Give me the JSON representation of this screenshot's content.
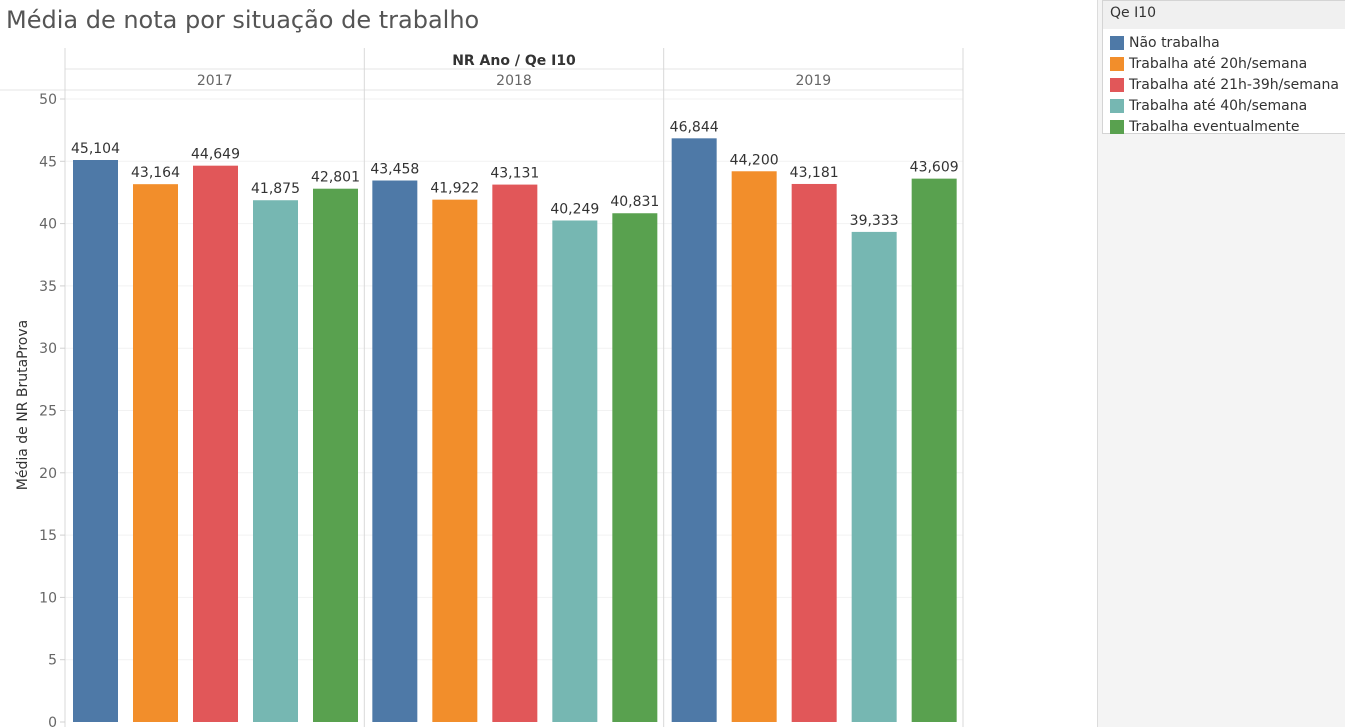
{
  "title": "Média de nota por situação de trabalho",
  "legend": {
    "title": "Qe I10",
    "items": [
      {
        "label": "Não trabalha",
        "color": "#4e79a7"
      },
      {
        "label": "Trabalha até 20h/semana",
        "color": "#f28e2b"
      },
      {
        "label": "Trabalha até 21h-39h/semana",
        "color": "#e15759"
      },
      {
        "label": "Trabalha até 40h/semana",
        "color": "#76b7b2"
      },
      {
        "label": "Trabalha eventualmente",
        "color": "#59a14f"
      }
    ]
  },
  "chart_data": {
    "type": "bar",
    "header": "NR Ano  /  Qe I10",
    "ylabel": "Média de NR BrutaProva",
    "ylim": [
      0,
      50
    ],
    "yticks": [
      0,
      5,
      10,
      15,
      20,
      25,
      30,
      35,
      40,
      45,
      50
    ],
    "categories": [
      "2017",
      "2018",
      "2019"
    ],
    "series": [
      {
        "name": "Não trabalha",
        "values": [
          45.104,
          43.458,
          46.844
        ],
        "labels": [
          "45,104",
          "43,458",
          "46,844"
        ]
      },
      {
        "name": "Trabalha até 20h/semana",
        "values": [
          43.164,
          41.922,
          44.2
        ],
        "labels": [
          "43,164",
          "41,922",
          "44,200"
        ]
      },
      {
        "name": "Trabalha até 21h-39h/semana",
        "values": [
          44.649,
          43.131,
          43.181
        ],
        "labels": [
          "44,649",
          "43,131",
          "43,181"
        ]
      },
      {
        "name": "Trabalha até 40h/semana",
        "values": [
          41.875,
          40.249,
          39.333
        ],
        "labels": [
          "41,875",
          "40,249",
          "39,333"
        ]
      },
      {
        "name": "Trabalha eventualmente",
        "values": [
          42.801,
          40.831,
          43.609
        ],
        "labels": [
          "42,801",
          "40,831",
          "43,609"
        ]
      }
    ]
  }
}
